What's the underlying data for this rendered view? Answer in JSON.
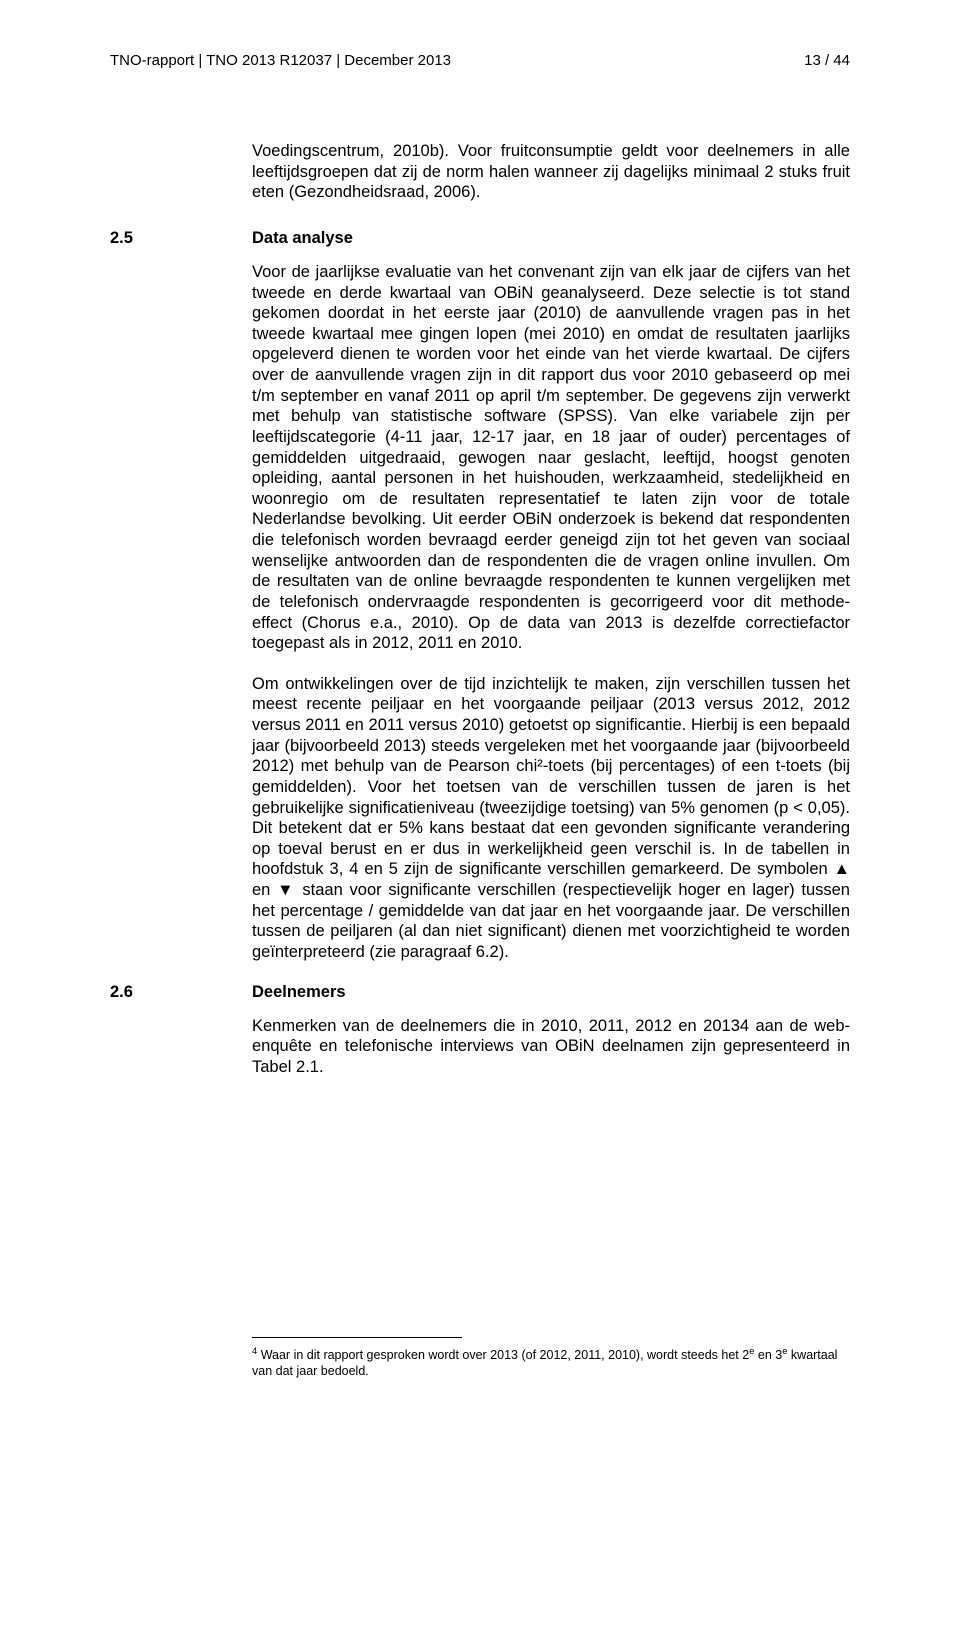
{
  "header": {
    "left": "TNO-rapport | TNO 2013 R12037 | December 2013",
    "right": "13 / 44"
  },
  "intro_paragraph": "Voedingscentrum, 2010b). Voor fruitconsumptie geldt voor deelnemers in alle leeftijdsgroepen dat zij de norm halen wanneer zij dagelijks minimaal 2 stuks fruit eten (Gezondheidsraad, 2006).",
  "section_25": {
    "num": "2.5",
    "title": "Data analyse",
    "p1": "Voor de jaarlijkse evaluatie van het convenant zijn van elk jaar de cijfers van het tweede en derde kwartaal van OBiN geanalyseerd. Deze selectie is tot stand gekomen doordat in het eerste jaar (2010) de aanvullende vragen pas in het tweede kwartaal mee gingen lopen (mei 2010) en omdat de resultaten jaarlijks opgeleverd dienen te worden voor het einde van het vierde kwartaal. De cijfers over de aanvullende vragen zijn in dit rapport dus voor 2010 gebaseerd op mei t/m september en vanaf 2011 op april t/m september. De gegevens zijn verwerkt met behulp van statistische software (SPSS). Van elke variabele zijn per leeftijdscategorie (4-11 jaar, 12-17 jaar, en 18 jaar of ouder) percentages of gemiddelden uitgedraaid, gewogen naar geslacht, leeftijd, hoogst genoten opleiding, aantal personen in het huishouden, werkzaamheid, stedelijkheid en woonregio om de resultaten representatief te laten zijn voor de totale Nederlandse bevolking. Uit eerder OBiN onderzoek is bekend dat respondenten die telefonisch worden bevraagd eerder geneigd zijn tot het geven van sociaal wenselijke antwoorden dan de respondenten die de vragen online invullen. Om de resultaten van de online bevraagde respondenten te kunnen vergelijken met de telefonisch ondervraagde respondenten is gecorrigeerd voor dit methode-effect (Chorus e.a., 2010). Op de data van 2013 is dezelfde correctiefactor toegepast als in 2012, 2011 en 2010.",
    "p2": "Om ontwikkelingen over de tijd inzichtelijk te maken, zijn verschillen tussen het meest recente peiljaar en het voorgaande peiljaar (2013 versus 2012, 2012 versus 2011 en 2011 versus 2010) getoetst op significantie. Hierbij is een bepaald jaar (bijvoorbeeld 2013) steeds vergeleken met het voorgaande jaar (bijvoorbeeld 2012) met behulp van de Pearson chi²-toets (bij percentages) of een t-toets (bij gemiddelden). Voor het toetsen van de verschillen tussen de jaren is het gebruikelijke significatieniveau (tweezijdige toetsing) van 5% genomen (p < 0,05). Dit betekent dat er 5% kans bestaat dat een gevonden significante verandering op toeval berust en er dus in werkelijkheid geen verschil is. In de tabellen in hoofdstuk 3, 4 en 5 zijn de significante verschillen gemarkeerd. De symbolen ▲ en ▼ staan voor significante verschillen (respectievelijk hoger en lager) tussen het percentage / gemiddelde van dat jaar en het voorgaande jaar. De verschillen tussen de peiljaren (al dan niet significant) dienen met voorzichtigheid te worden geïnterpreteerd (zie paragraaf 6.2)."
  },
  "section_26": {
    "num": "2.6",
    "title": "Deelnemers",
    "p1": "Kenmerken van de deelnemers die in 2010, 2011, 2012 en 20134 aan de web-enquête en telefonische interviews van OBiN deelnamen zijn gepresenteerd in Tabel 2.1."
  },
  "footnote": {
    "marker": "4",
    "text_before_sup": " Waar in dit rapport gesproken wordt over 2013 (of 2012, 2011, 2010), wordt steeds het 2",
    "sup1": "e",
    "mid": " en 3",
    "sup2": "e",
    "after": " kwartaal van dat jaar bedoeld."
  }
}
